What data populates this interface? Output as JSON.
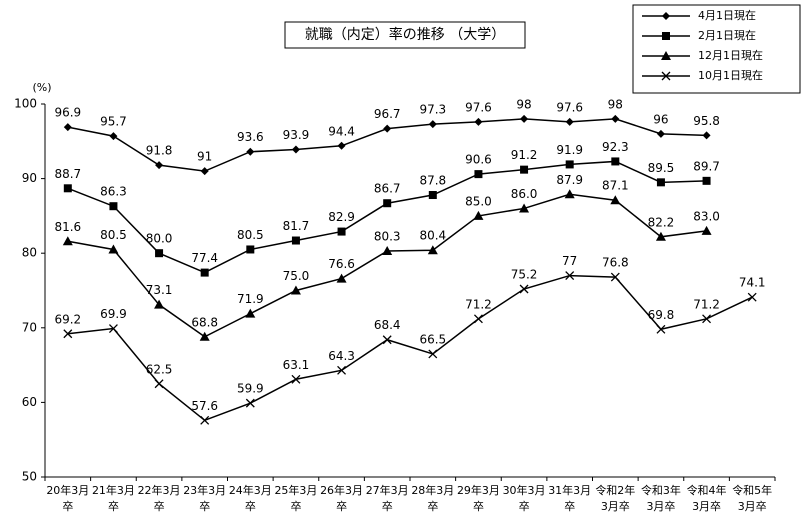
{
  "chart_data": {
    "type": "line",
    "title": "就職（内定）率の推移 （大学）",
    "y_label": "(%)",
    "categories": [
      [
        "20年3月",
        "卒"
      ],
      [
        "21年3月",
        "卒"
      ],
      [
        "22年3月",
        "卒"
      ],
      [
        "23年3月",
        "卒"
      ],
      [
        "24年3月",
        "卒"
      ],
      [
        "25年3月",
        "卒"
      ],
      [
        "26年3月",
        "卒"
      ],
      [
        "27年3月",
        "卒"
      ],
      [
        "28年3月",
        "卒"
      ],
      [
        "29年3月",
        "卒"
      ],
      [
        "30年3月",
        "卒"
      ],
      [
        "31年3月",
        "卒"
      ],
      [
        "令和2年",
        "3月卒"
      ],
      [
        "令和3年",
        "3月卒"
      ],
      [
        "令和4年",
        "3月卒"
      ],
      [
        "令和5年",
        "3月卒"
      ]
    ],
    "series": [
      {
        "name": "4月1日現在",
        "color": "#000000",
        "marker": "diamond",
        "values": [
          96.9,
          95.7,
          91.8,
          91.0,
          93.6,
          93.9,
          94.4,
          96.7,
          97.3,
          97.6,
          98.0,
          97.6,
          98.0,
          96.0,
          95.8,
          null
        ]
      },
      {
        "name": "2月1日現在",
        "color": "#000000",
        "marker": "square",
        "values": [
          88.7,
          86.3,
          80.0,
          77.4,
          80.5,
          81.7,
          82.9,
          86.7,
          87.8,
          90.6,
          91.2,
          91.9,
          92.3,
          89.5,
          89.7,
          null
        ],
        "value_labels": [
          "88.7",
          "86.3",
          "80.0",
          "77.4",
          "80.5",
          "81.7",
          "82.9",
          "86.7",
          "87.8",
          "90.6",
          "91.2",
          "91.9",
          "92.3",
          "89.5",
          "89.7",
          null
        ]
      },
      {
        "name": "12月1日現在",
        "color": "#000000",
        "marker": "triangle",
        "values": [
          81.6,
          80.5,
          73.1,
          68.8,
          71.9,
          75.0,
          76.6,
          80.3,
          80.4,
          85.0,
          86.0,
          87.9,
          87.1,
          82.2,
          83.0,
          null
        ],
        "value_labels": [
          "81.6",
          "80.5",
          "73.1",
          "68.8",
          "71.9",
          "75.0",
          "76.6",
          "80.3",
          "80.4",
          "85.0",
          "86.0",
          "87.9",
          "87.1",
          "82.2",
          "83.0",
          null
        ]
      },
      {
        "name": "10月1日現在",
        "color": "#000000",
        "marker": "x",
        "values": [
          69.2,
          69.9,
          62.5,
          57.6,
          59.9,
          63.1,
          64.3,
          68.4,
          66.5,
          71.2,
          75.2,
          77.0,
          76.8,
          69.8,
          71.2,
          74.1
        ]
      }
    ],
    "ylim": [
      50,
      100
    ],
    "yticks": [
      50,
      60,
      70,
      80,
      90,
      100
    ],
    "grid": false,
    "legend": "top-right"
  }
}
